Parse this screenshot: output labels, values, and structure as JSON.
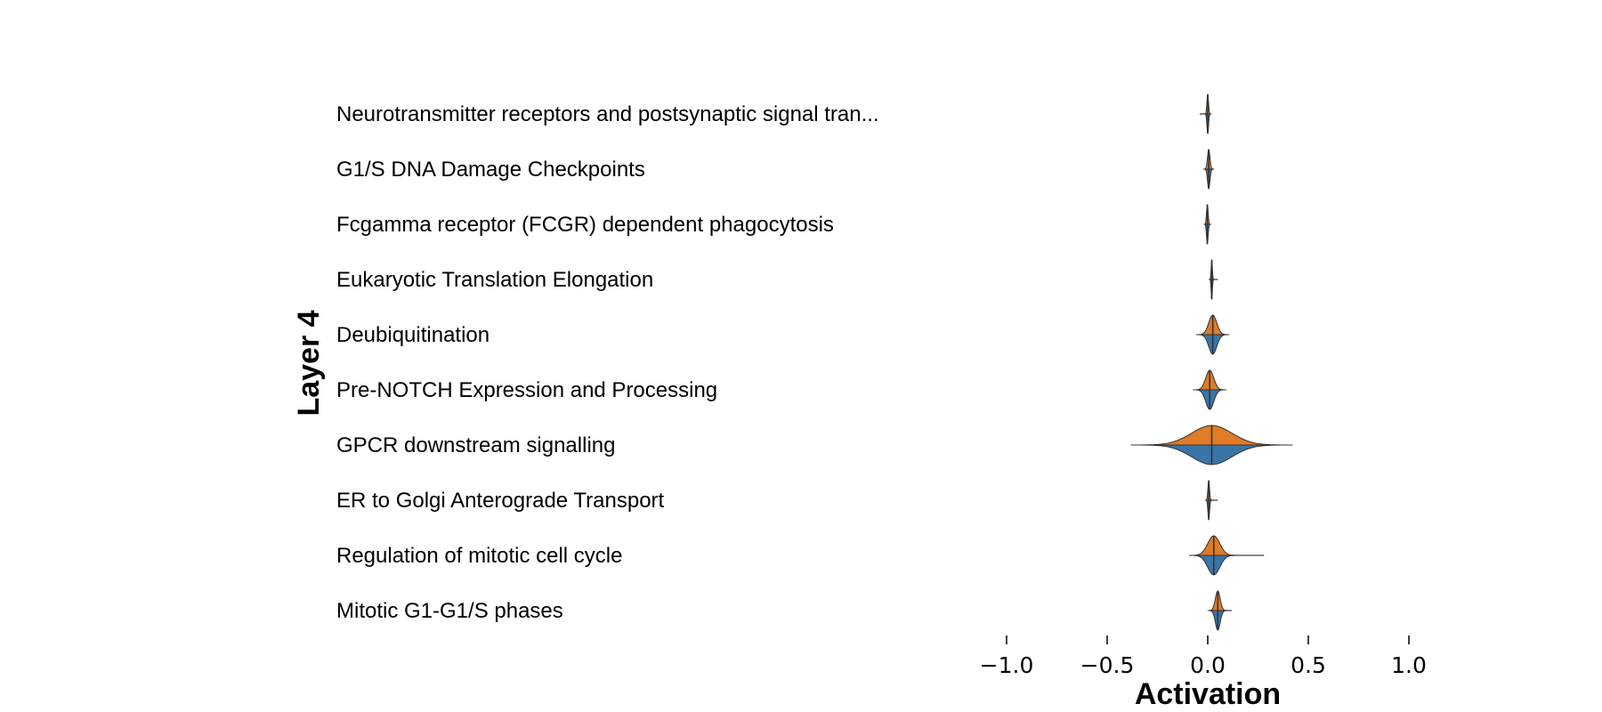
{
  "chart_data": {
    "type": "violin",
    "ylabel": "Layer 4",
    "xlabel": "Activation",
    "xlim": [
      -1.0,
      1.0
    ],
    "xticks": [
      -1.0,
      -0.5,
      0.0,
      0.5,
      1.0
    ],
    "xtick_labels": [
      "−1.0",
      "−0.5",
      "0.0",
      "0.5",
      "1.0"
    ],
    "split_colors": {
      "upper": "#e07b26",
      "lower": "#3a75a8"
    },
    "categories": [
      "Neurotransmitter receptors and postsynaptic signal tran...",
      "G1/S DNA Damage Checkpoints",
      "Fcgamma receptor (FCGR) dependent phagocytosis",
      "Eukaryotic Translation Elongation",
      "Deubiquitination",
      "Pre-NOTCH Expression and Processing",
      "GPCR downstream signalling",
      "ER to Golgi Anterograde Transport",
      "Regulation of mitotic cell cycle",
      "Mitotic G1-G1/S phases"
    ],
    "series": [
      {
        "center": 0.0,
        "min": -0.04,
        "max": 0.01,
        "width": 0.004
      },
      {
        "center": 0.005,
        "min": -0.003,
        "max": 0.012,
        "width": 0.006
      },
      {
        "center": -0.002,
        "min": -0.008,
        "max": 0.005,
        "width": 0.004
      },
      {
        "center": 0.02,
        "min": 0.015,
        "max": 0.05,
        "width": 0.003
      },
      {
        "center": 0.025,
        "min": -0.01,
        "max": 0.07,
        "width": 0.02
      },
      {
        "center": 0.01,
        "min": -0.03,
        "max": 0.06,
        "width": 0.02
      },
      {
        "center": 0.02,
        "min": -0.15,
        "max": 0.23,
        "width": 0.1
      },
      {
        "center": 0.005,
        "min": 0.0,
        "max": 0.05,
        "width": 0.004
      },
      {
        "center": 0.03,
        "min": -0.05,
        "max": 0.28,
        "width": 0.03
      },
      {
        "center": 0.05,
        "min": 0.01,
        "max": 0.12,
        "width": 0.012
      }
    ]
  }
}
